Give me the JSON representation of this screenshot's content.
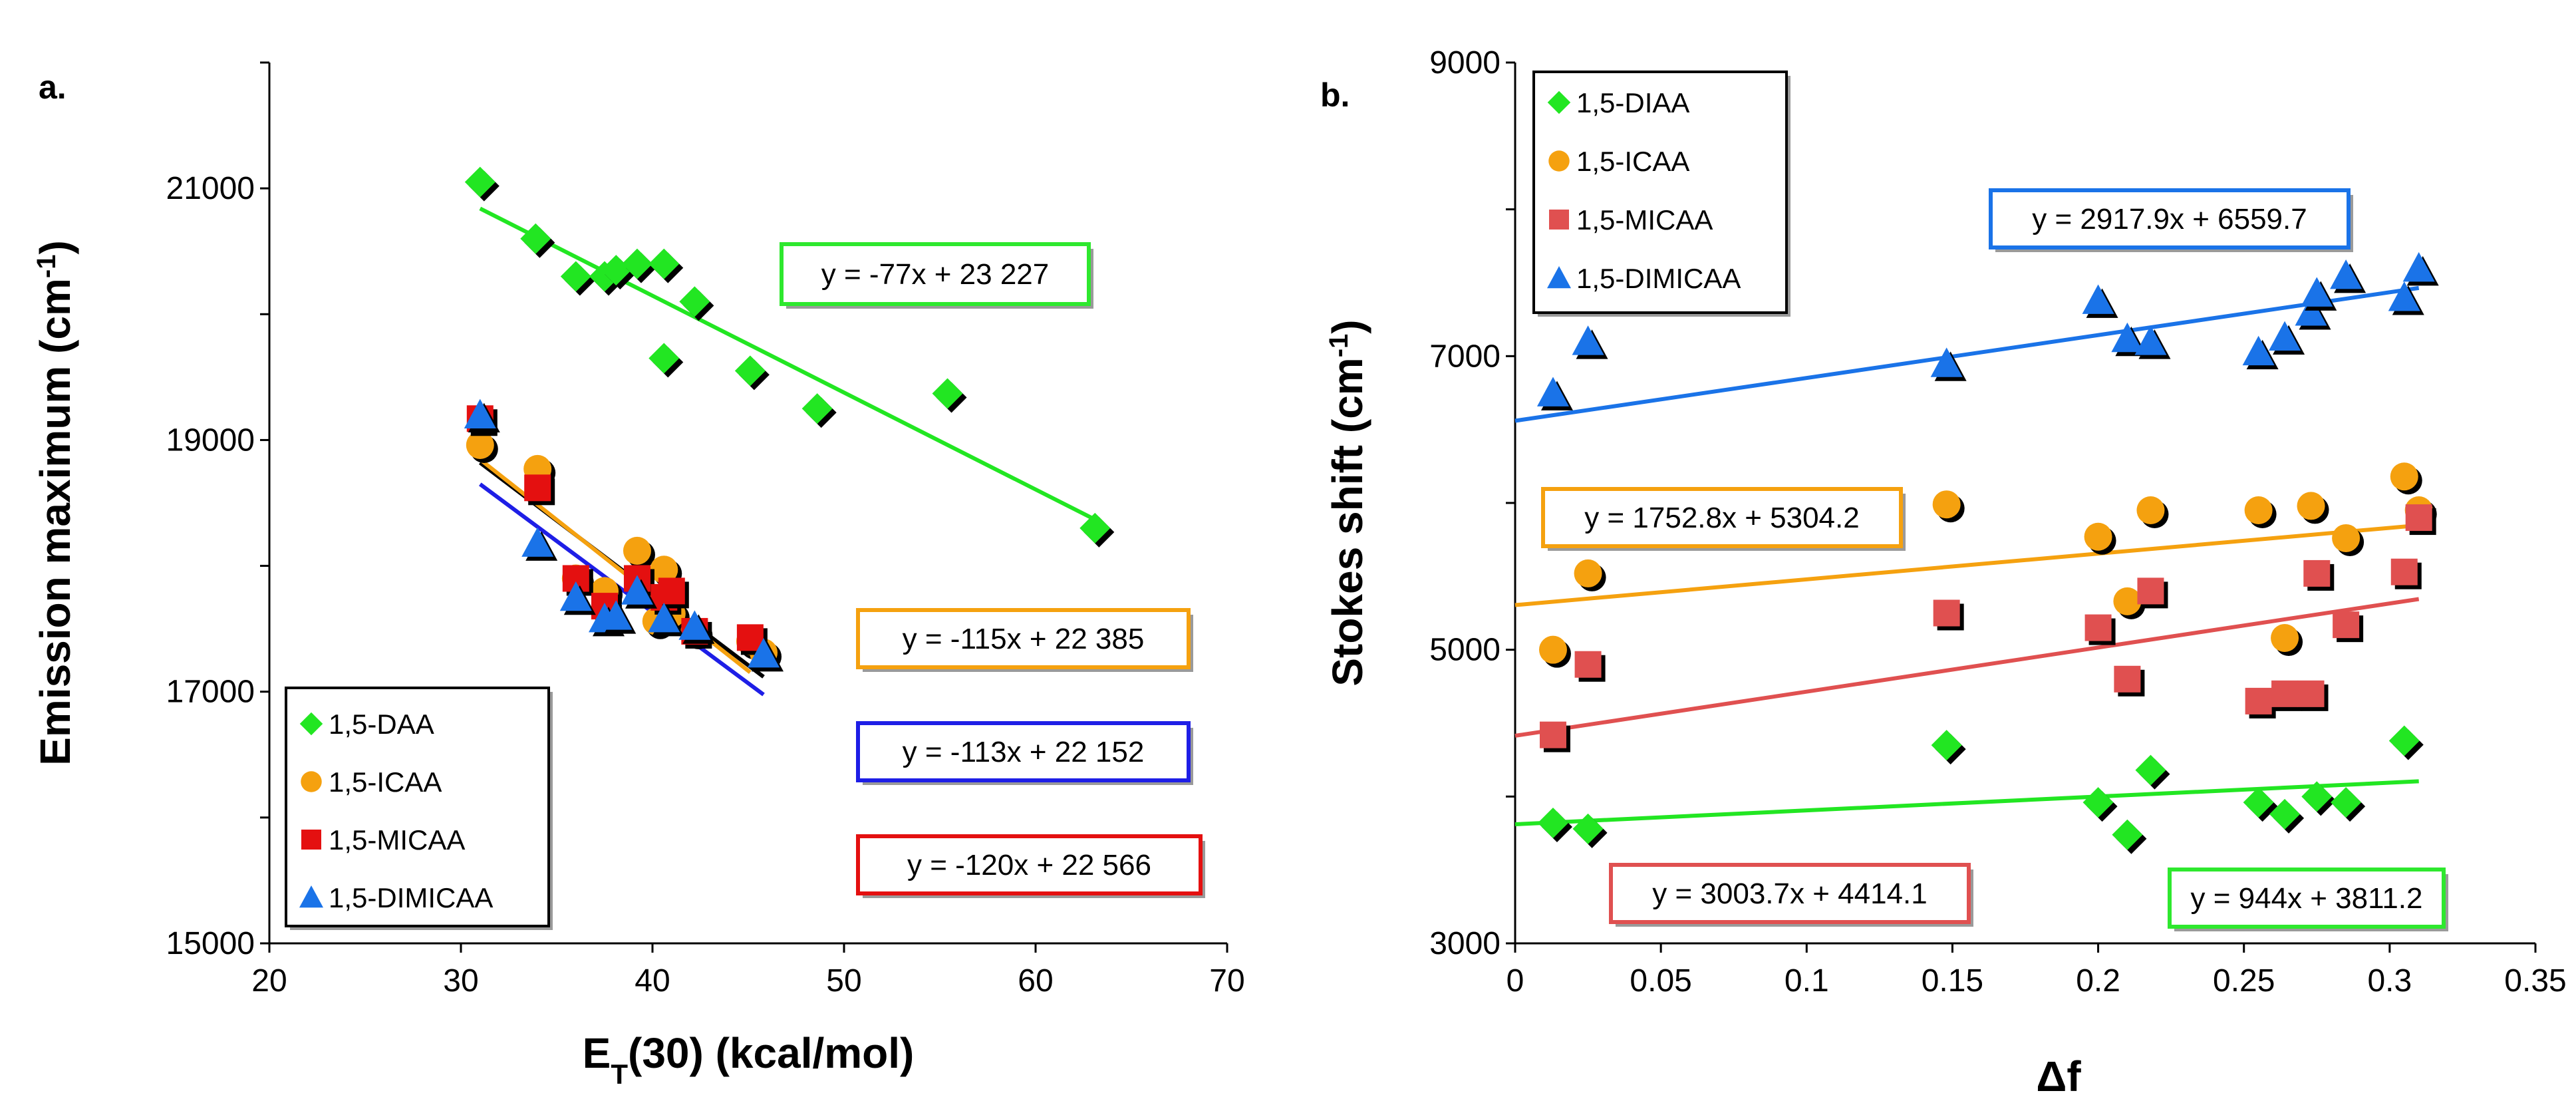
{
  "chart_data": [
    {
      "panel_label": "a.",
      "type": "scatter",
      "xlabel_main": "E",
      "xlabel_sub": "T",
      "xlabel_rest": "(30) (kcal/mol)",
      "ylabel_main": "Emission maximum (cm",
      "ylabel_sup": "-1",
      "ylabel_end": ")",
      "xlim": [
        20,
        70
      ],
      "ylim": [
        15000,
        22000
      ],
      "xticks": [
        "20",
        "30",
        "40",
        "50",
        "60",
        "70"
      ],
      "yticks": [
        "15000",
        "17000",
        "19000",
        "21000"
      ],
      "legend_position": "bottom-left",
      "series": [
        {
          "name": "1,5-DAA",
          "marker": "diamond",
          "color": "#22e622",
          "points": [
            [
              31,
              21050
            ],
            [
              33.9,
              20600
            ],
            [
              36,
              20300
            ],
            [
              37.5,
              20300
            ],
            [
              38.1,
              20350
            ],
            [
              39.2,
              20400
            ],
            [
              40.6,
              20400
            ],
            [
              42.2,
              20100
            ],
            [
              40.6,
              19650
            ],
            [
              45.1,
              19550
            ],
            [
              48.6,
              19250
            ],
            [
              55.4,
              19370
            ],
            [
              63.1,
              18300
            ]
          ],
          "fit": {
            "slope": -77,
            "intercept": 23227,
            "x_range": [
              31,
              63.1
            ]
          },
          "equation": "y = -77x + 23 227"
        },
        {
          "name": "1,5-ICAA",
          "marker": "circle",
          "color": "#f5a10f",
          "points": [
            [
              31,
              18960
            ],
            [
              34,
              18770
            ],
            [
              36,
              17900
            ],
            [
              37.5,
              17800
            ],
            [
              39.2,
              18120
            ],
            [
              40.6,
              17970
            ],
            [
              40.2,
              17560
            ],
            [
              41,
              17620
            ],
            [
              42.2,
              17480
            ],
            [
              45.1,
              17400
            ],
            [
              45.8,
              17310
            ]
          ],
          "fit": {
            "slope": -115,
            "intercept": 22385,
            "x_range": [
              31,
              45.8
            ]
          },
          "fit_color": "#000000",
          "equation": "y = -115x + 22 385"
        },
        {
          "name": "1,5-MICAA",
          "marker": "square",
          "color": "#e41010",
          "points": [
            [
              31,
              19170
            ],
            [
              34,
              18620
            ],
            [
              36,
              17900
            ],
            [
              37.5,
              17680
            ],
            [
              39.2,
              17900
            ],
            [
              40.6,
              17750
            ],
            [
              41,
              17800
            ],
            [
              42.2,
              17480
            ],
            [
              45.1,
              17430
            ]
          ],
          "fit": {
            "slope": -120,
            "intercept": 22566,
            "x_range": [
              31,
              45.1
            ]
          },
          "fit_color": "#f5a10f",
          "equation": "y = -120x + 22 566"
        },
        {
          "name": "1,5-DIMICAA",
          "marker": "triangle",
          "color": "#1a73e8",
          "points": [
            [
              31,
              19200
            ],
            [
              34,
              18180
            ],
            [
              36,
              17750
            ],
            [
              37.5,
              17580
            ],
            [
              38.1,
              17600
            ],
            [
              39.2,
              17800
            ],
            [
              40.6,
              17580
            ],
            [
              42.2,
              17520
            ],
            [
              45.8,
              17300
            ]
          ],
          "fit": {
            "slope": -113,
            "intercept": 22152,
            "x_range": [
              31,
              45.8
            ]
          },
          "fit_color": "#1e1ee6",
          "equation": "y = -113x + 22 152"
        }
      ]
    },
    {
      "panel_label": "b.",
      "type": "scatter",
      "xlabel_main": "Δf",
      "ylabel_main": "Stokes shift (cm",
      "ylabel_sup": "-1",
      "ylabel_end": ")",
      "xlim": [
        0,
        0.35
      ],
      "ylim": [
        3000,
        9000
      ],
      "xticks": [
        "0",
        "0.05",
        "0.1",
        "0.15",
        "0.2",
        "0.25",
        "0.3",
        "0.35"
      ],
      "yticks": [
        "3000",
        "5000",
        "7000",
        "9000"
      ],
      "legend_position": "top-left",
      "series": [
        {
          "name": "1,5-DIAA",
          "marker": "diamond",
          "color": "#22e622",
          "points": [
            [
              0.013,
              3820
            ],
            [
              0.025,
              3780
            ],
            [
              0.148,
              4350
            ],
            [
              0.2,
              3960
            ],
            [
              0.21,
              3740
            ],
            [
              0.218,
              4180
            ],
            [
              0.255,
              3960
            ],
            [
              0.264,
              3880
            ],
            [
              0.275,
              4000
            ],
            [
              0.285,
              3960
            ],
            [
              0.305,
              4380
            ]
          ],
          "fit": {
            "slope": 944,
            "intercept": 3811.2,
            "x_range": [
              0,
              0.31
            ]
          },
          "equation": "y = 944x + 3811.2"
        },
        {
          "name": "1,5-ICAA",
          "marker": "circle",
          "color": "#f5a10f",
          "points": [
            [
              0.013,
              5000
            ],
            [
              0.025,
              5520
            ],
            [
              0.148,
              5990
            ],
            [
              0.2,
              5770
            ],
            [
              0.21,
              5330
            ],
            [
              0.218,
              5950
            ],
            [
              0.255,
              5950
            ],
            [
              0.264,
              5080
            ],
            [
              0.273,
              5980
            ],
            [
              0.285,
              5760
            ],
            [
              0.305,
              6180
            ],
            [
              0.31,
              5950
            ]
          ],
          "fit": {
            "slope": 1752.8,
            "intercept": 5304.2,
            "x_range": [
              0,
              0.31
            ]
          },
          "equation": "y = 1752.8x + 5304.2"
        },
        {
          "name": "1,5-MICAA",
          "marker": "square",
          "color": "#e05050",
          "points": [
            [
              0.013,
              4420
            ],
            [
              0.025,
              4900
            ],
            [
              0.148,
              5250
            ],
            [
              0.2,
              5150
            ],
            [
              0.21,
              4800
            ],
            [
              0.218,
              5400
            ],
            [
              0.255,
              4650
            ],
            [
              0.264,
              4700
            ],
            [
              0.273,
              4700
            ],
            [
              0.275,
              5520
            ],
            [
              0.285,
              5170
            ],
            [
              0.305,
              5530
            ],
            [
              0.31,
              5900
            ]
          ],
          "fit": {
            "slope": 3003.7,
            "intercept": 4414.1,
            "x_range": [
              0,
              0.31
            ]
          },
          "equation": "y = 3003.7x + 4414.1"
        },
        {
          "name": "1,5-DIMICAA",
          "marker": "triangle",
          "color": "#1a73e8",
          "points": [
            [
              0.013,
              6750
            ],
            [
              0.025,
              7100
            ],
            [
              0.148,
              6950
            ],
            [
              0.2,
              7380
            ],
            [
              0.21,
              7120
            ],
            [
              0.218,
              7100
            ],
            [
              0.255,
              7030
            ],
            [
              0.264,
              7130
            ],
            [
              0.273,
              7300
            ],
            [
              0.275,
              7430
            ],
            [
              0.285,
              7550
            ],
            [
              0.305,
              7400
            ],
            [
              0.31,
              7600
            ]
          ],
          "fit": {
            "slope": 2917.9,
            "intercept": 6559.7,
            "x_range": [
              0,
              0.31
            ]
          },
          "equation": "y = 2917.9x + 6559.7"
        }
      ]
    }
  ]
}
